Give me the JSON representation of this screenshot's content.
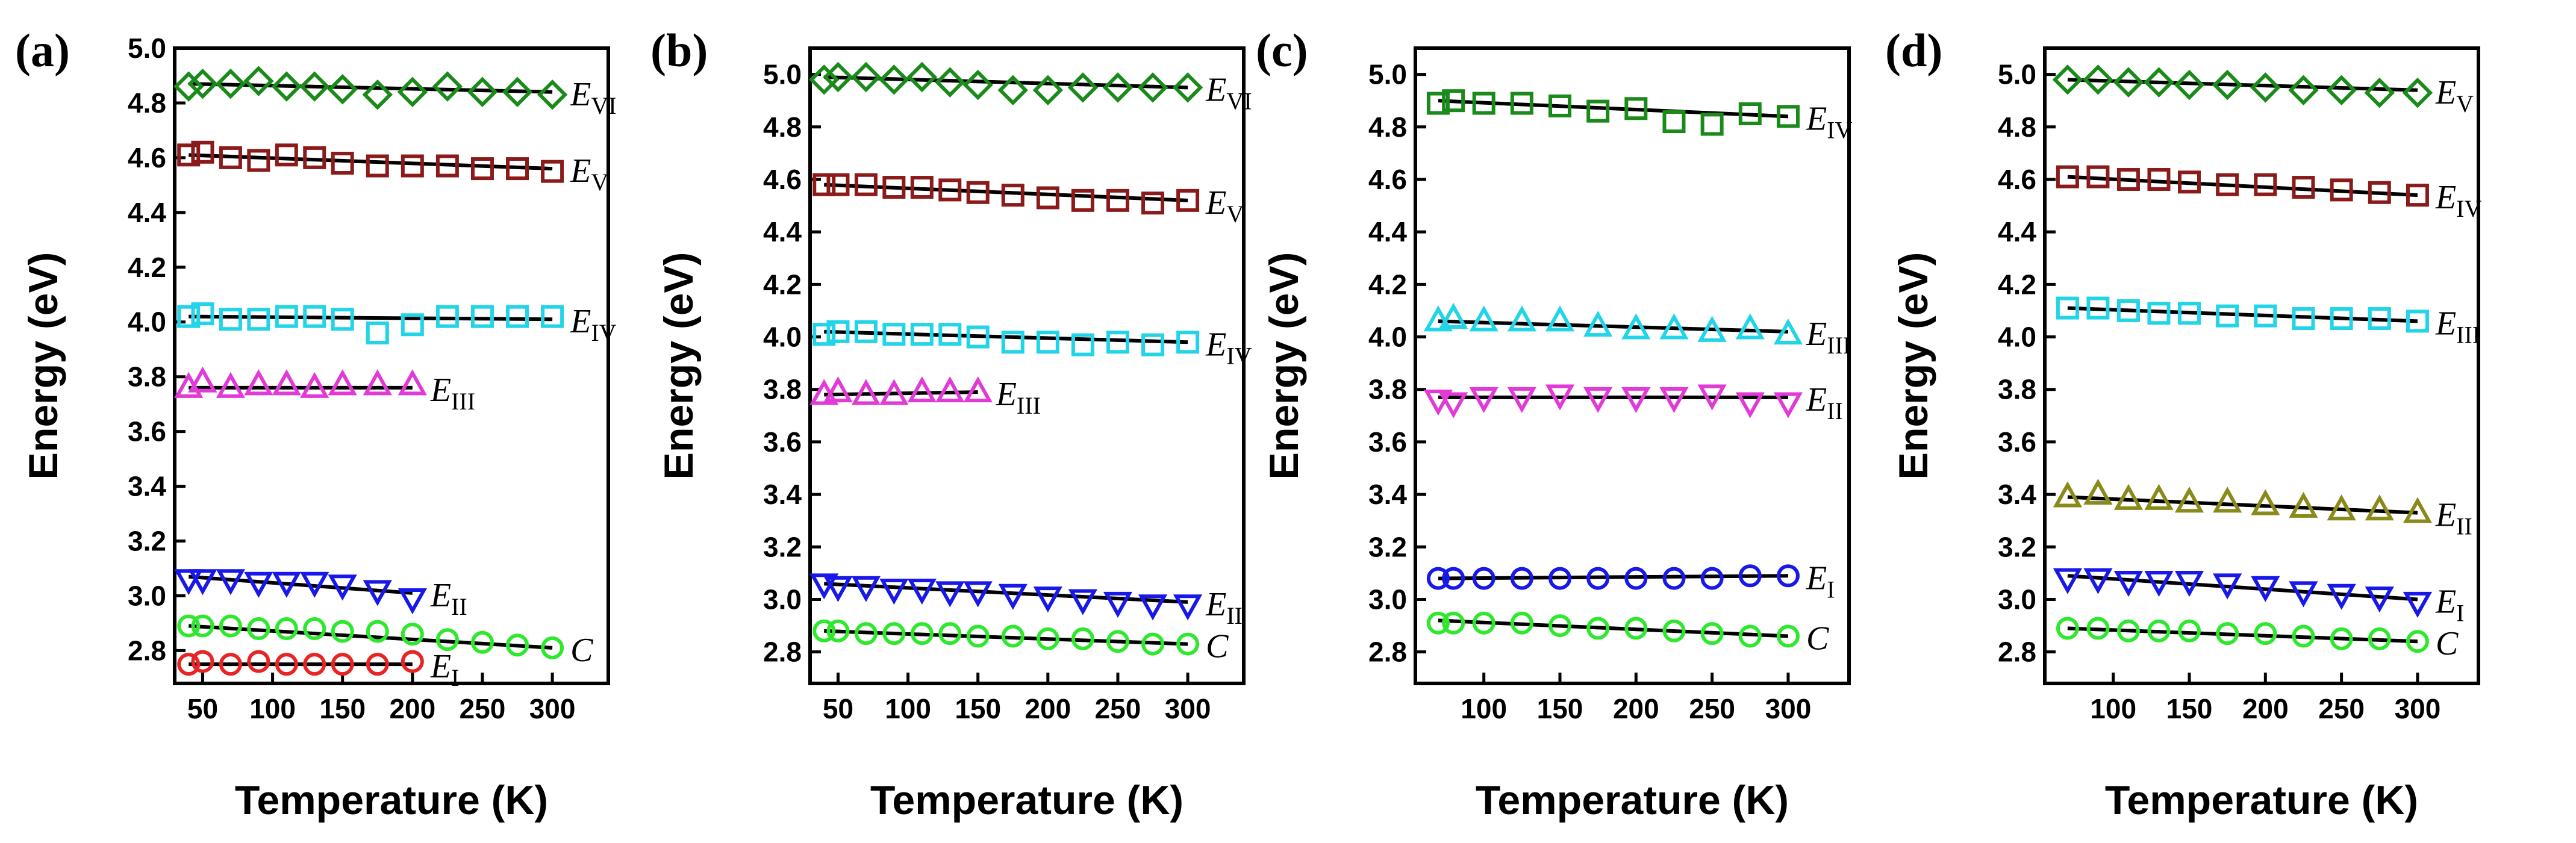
{
  "chart_data": [
    {
      "type": "scatter",
      "panel_label": "(a)",
      "xlabel": "Temperature (K)",
      "ylabel": "Energy (eV)",
      "xlim": [
        30,
        340
      ],
      "ylim": [
        2.68,
        5.0
      ],
      "xticks": [
        50,
        100,
        150,
        200,
        250,
        300
      ],
      "yticks": [
        2.8,
        3.0,
        3.2,
        3.4,
        3.6,
        3.8,
        4.0,
        4.2,
        4.4,
        4.6,
        4.8,
        5.0
      ],
      "series": [
        {
          "name": "E_VI",
          "label_main": "E",
          "label_sub": "VI",
          "marker": "diamond",
          "color": "#1a8a1a",
          "x": [
            40,
            50,
            70,
            90,
            110,
            130,
            150,
            175,
            200,
            225,
            250,
            275,
            300
          ],
          "y": [
            4.86,
            4.87,
            4.87,
            4.88,
            4.86,
            4.86,
            4.85,
            4.83,
            4.84,
            4.86,
            4.84,
            4.84,
            4.83
          ],
          "fit": [
            4.87,
            4.84
          ]
        },
        {
          "name": "E_V",
          "label_main": "E",
          "label_sub": "V",
          "marker": "square",
          "color": "#8b1a1a",
          "x": [
            40,
            50,
            70,
            90,
            110,
            130,
            150,
            175,
            200,
            225,
            250,
            275,
            300
          ],
          "y": [
            4.61,
            4.62,
            4.6,
            4.59,
            4.61,
            4.6,
            4.58,
            4.57,
            4.57,
            4.57,
            4.56,
            4.56,
            4.55
          ],
          "fit": [
            4.61,
            4.56
          ]
        },
        {
          "name": "E_IV",
          "label_main": "E",
          "label_sub": "IV",
          "marker": "square",
          "color": "#22d4e8",
          "x": [
            40,
            50,
            70,
            90,
            110,
            130,
            150,
            175,
            200,
            225,
            250,
            275,
            300
          ],
          "y": [
            4.02,
            4.03,
            4.01,
            4.01,
            4.02,
            4.02,
            4.01,
            3.96,
            3.99,
            4.02,
            4.02,
            4.02,
            4.02
          ],
          "fit": [
            4.02,
            4.01
          ]
        },
        {
          "name": "E_III",
          "label_main": "E",
          "label_sub": "III",
          "marker": "triangle-up",
          "color": "#e23ad6",
          "x": [
            40,
            50,
            70,
            90,
            110,
            130,
            150,
            175,
            200
          ],
          "y": [
            3.76,
            3.78,
            3.76,
            3.77,
            3.77,
            3.76,
            3.77,
            3.77,
            3.77
          ],
          "fit": [
            3.76,
            3.76
          ]
        },
        {
          "name": "E_II",
          "label_main": "E",
          "label_sub": "II",
          "marker": "triangle-down",
          "color": "#1818e8",
          "x": [
            40,
            50,
            70,
            90,
            110,
            130,
            150,
            175,
            200
          ],
          "y": [
            3.06,
            3.06,
            3.06,
            3.05,
            3.05,
            3.05,
            3.04,
            3.02,
            2.99
          ],
          "fit": [
            3.07,
            3.01
          ]
        },
        {
          "name": "C",
          "label_main": "C",
          "label_sub": "",
          "marker": "circle",
          "color": "#2ee82e",
          "x": [
            40,
            50,
            70,
            90,
            110,
            130,
            150,
            175,
            200,
            225,
            250,
            275,
            300
          ],
          "y": [
            2.89,
            2.89,
            2.89,
            2.88,
            2.88,
            2.88,
            2.87,
            2.87,
            2.86,
            2.84,
            2.83,
            2.82,
            2.81
          ],
          "fit": [
            2.89,
            2.81
          ]
        },
        {
          "name": "E_I",
          "label_main": "E",
          "label_sub": "I",
          "marker": "circle",
          "color": "#e82424",
          "x": [
            40,
            50,
            70,
            90,
            110,
            130,
            150,
            175,
            200
          ],
          "y": [
            2.75,
            2.76,
            2.75,
            2.76,
            2.75,
            2.75,
            2.75,
            2.75,
            2.76
          ],
          "fit": [
            2.75,
            2.75
          ]
        }
      ]
    },
    {
      "type": "scatter",
      "panel_label": "(b)",
      "xlabel": "Temperature (K)",
      "ylabel": "Energy (eV)",
      "xlim": [
        30,
        340
      ],
      "ylim": [
        2.68,
        5.1
      ],
      "xticks": [
        50,
        100,
        150,
        200,
        250,
        300
      ],
      "yticks": [
        2.8,
        3.0,
        3.2,
        3.4,
        3.6,
        3.8,
        4.0,
        4.2,
        4.4,
        4.6,
        4.8,
        5.0
      ],
      "series": [
        {
          "name": "E_VI",
          "label_main": "E",
          "label_sub": "VI",
          "marker": "diamond",
          "color": "#1a8a1a",
          "x": [
            40,
            50,
            70,
            90,
            110,
            130,
            150,
            175,
            200,
            225,
            250,
            275,
            300
          ],
          "y": [
            4.98,
            4.99,
            4.99,
            4.98,
            4.99,
            4.97,
            4.96,
            4.94,
            4.94,
            4.95,
            4.95,
            4.95,
            4.95
          ],
          "fit": [
            4.99,
            4.95
          ]
        },
        {
          "name": "E_V",
          "label_main": "E",
          "label_sub": "V",
          "marker": "square",
          "color": "#8b1a1a",
          "x": [
            40,
            50,
            70,
            90,
            110,
            130,
            150,
            175,
            200,
            225,
            250,
            275,
            300
          ],
          "y": [
            4.58,
            4.58,
            4.58,
            4.57,
            4.57,
            4.56,
            4.55,
            4.54,
            4.53,
            4.52,
            4.52,
            4.51,
            4.52
          ],
          "fit": [
            4.58,
            4.52
          ]
        },
        {
          "name": "E_IV",
          "label_main": "E",
          "label_sub": "IV",
          "marker": "square",
          "color": "#22d4e8",
          "x": [
            40,
            50,
            70,
            90,
            110,
            130,
            150,
            175,
            200,
            225,
            250,
            275,
            300
          ],
          "y": [
            4.01,
            4.02,
            4.02,
            4.01,
            4.01,
            4.01,
            4.0,
            3.98,
            3.98,
            3.97,
            3.98,
            3.97,
            3.98
          ],
          "fit": [
            4.02,
            3.98
          ]
        },
        {
          "name": "E_III",
          "label_main": "E",
          "label_sub": "III",
          "marker": "triangle-up",
          "color": "#e23ad6",
          "x": [
            40,
            50,
            70,
            90,
            110,
            130,
            150
          ],
          "y": [
            3.78,
            3.79,
            3.78,
            3.78,
            3.79,
            3.79,
            3.79
          ],
          "fit": [
            3.78,
            3.79
          ]
        },
        {
          "name": "E_II",
          "label_main": "E",
          "label_sub": "II",
          "marker": "triangle-down",
          "color": "#1818e8",
          "x": [
            40,
            50,
            70,
            90,
            110,
            130,
            150,
            175,
            200,
            225,
            250,
            275,
            300
          ],
          "y": [
            3.06,
            3.05,
            3.05,
            3.04,
            3.04,
            3.03,
            3.03,
            3.02,
            3.01,
            3.0,
            2.99,
            2.98,
            2.98
          ],
          "fit": [
            3.06,
            2.99
          ]
        },
        {
          "name": "C",
          "label_main": "C",
          "label_sub": "",
          "marker": "circle",
          "color": "#2ee82e",
          "x": [
            40,
            50,
            70,
            90,
            110,
            130,
            150,
            175,
            200,
            225,
            250,
            275,
            300
          ],
          "y": [
            2.88,
            2.88,
            2.87,
            2.87,
            2.87,
            2.87,
            2.86,
            2.86,
            2.85,
            2.85,
            2.84,
            2.83,
            2.83
          ],
          "fit": [
            2.88,
            2.83
          ]
        }
      ]
    },
    {
      "type": "scatter",
      "panel_label": "(c)",
      "xlabel": "Temperature (K)",
      "ylabel": "Energy (eV)",
      "xlim": [
        55,
        340
      ],
      "ylim": [
        2.68,
        5.1
      ],
      "xticks": [
        100,
        150,
        200,
        250,
        300
      ],
      "yticks": [
        2.8,
        3.0,
        3.2,
        3.4,
        3.6,
        3.8,
        4.0,
        4.2,
        4.4,
        4.6,
        4.8,
        5.0
      ],
      "series": [
        {
          "name": "E_IV",
          "label_main": "E",
          "label_sub": "IV",
          "marker": "square",
          "color": "#1a8a1a",
          "x": [
            70,
            80,
            100,
            125,
            150,
            175,
            200,
            225,
            250,
            275,
            300
          ],
          "y": [
            4.89,
            4.9,
            4.89,
            4.89,
            4.88,
            4.86,
            4.87,
            4.82,
            4.81,
            4.85,
            4.84
          ],
          "fit": [
            4.9,
            4.84
          ]
        },
        {
          "name": "E_III",
          "label_main": "E",
          "label_sub": "III",
          "marker": "triangle-up",
          "color": "#22d4e8",
          "x": [
            70,
            80,
            100,
            125,
            150,
            175,
            200,
            225,
            250,
            275,
            300
          ],
          "y": [
            4.06,
            4.07,
            4.06,
            4.06,
            4.06,
            4.04,
            4.03,
            4.03,
            4.02,
            4.03,
            4.01
          ],
          "fit": [
            4.06,
            4.02
          ]
        },
        {
          "name": "E_II",
          "label_main": "E",
          "label_sub": "II",
          "marker": "triangle-down",
          "color": "#e23ad6",
          "x": [
            70,
            80,
            100,
            125,
            150,
            175,
            200,
            225,
            250,
            275,
            300
          ],
          "y": [
            3.76,
            3.75,
            3.77,
            3.77,
            3.78,
            3.77,
            3.77,
            3.77,
            3.78,
            3.75,
            3.75
          ],
          "fit": [
            3.77,
            3.77
          ]
        },
        {
          "name": "E_I",
          "label_main": "E",
          "label_sub": "I",
          "marker": "circle",
          "color": "#1818e8",
          "x": [
            70,
            80,
            100,
            125,
            150,
            175,
            200,
            225,
            250,
            275,
            300
          ],
          "y": [
            3.08,
            3.08,
            3.08,
            3.08,
            3.08,
            3.08,
            3.08,
            3.08,
            3.08,
            3.09,
            3.09
          ],
          "fit": [
            3.08,
            3.09
          ]
        },
        {
          "name": "C",
          "label_main": "C",
          "label_sub": "",
          "marker": "circle",
          "color": "#2ee82e",
          "x": [
            70,
            80,
            100,
            125,
            150,
            175,
            200,
            225,
            250,
            275,
            300
          ],
          "y": [
            2.91,
            2.91,
            2.91,
            2.91,
            2.9,
            2.89,
            2.89,
            2.88,
            2.87,
            2.86,
            2.86
          ],
          "fit": [
            2.92,
            2.86
          ]
        }
      ]
    },
    {
      "type": "scatter",
      "panel_label": "(d)",
      "xlabel": "Temperature (K)",
      "ylabel": "Energy (eV)",
      "xlim": [
        55,
        340
      ],
      "ylim": [
        2.68,
        5.1
      ],
      "xticks": [
        100,
        150,
        200,
        250,
        300
      ],
      "yticks": [
        2.8,
        3.0,
        3.2,
        3.4,
        3.6,
        3.8,
        4.0,
        4.2,
        4.4,
        4.6,
        4.8,
        5.0
      ],
      "series": [
        {
          "name": "E_V",
          "label_main": "E",
          "label_sub": "V",
          "marker": "diamond",
          "color": "#1a8a1a",
          "x": [
            70,
            90,
            110,
            130,
            150,
            175,
            200,
            225,
            250,
            275,
            300
          ],
          "y": [
            4.98,
            4.98,
            4.97,
            4.97,
            4.96,
            4.96,
            4.95,
            4.94,
            4.94,
            4.93,
            4.93
          ],
          "fit": [
            4.98,
            4.94
          ]
        },
        {
          "name": "E_IV",
          "label_main": "E",
          "label_sub": "IV",
          "marker": "square",
          "color": "#8b1a1a",
          "x": [
            70,
            90,
            110,
            130,
            150,
            175,
            200,
            225,
            250,
            275,
            300
          ],
          "y": [
            4.61,
            4.61,
            4.6,
            4.6,
            4.59,
            4.58,
            4.58,
            4.57,
            4.56,
            4.55,
            4.54
          ],
          "fit": [
            4.61,
            4.54
          ]
        },
        {
          "name": "E_III",
          "label_main": "E",
          "label_sub": "III",
          "marker": "square",
          "color": "#22d4e8",
          "x": [
            70,
            90,
            110,
            130,
            150,
            175,
            200,
            225,
            250,
            275,
            300
          ],
          "y": [
            4.11,
            4.11,
            4.1,
            4.09,
            4.09,
            4.08,
            4.08,
            4.07,
            4.07,
            4.07,
            4.06
          ],
          "fit": [
            4.11,
            4.06
          ]
        },
        {
          "name": "E_II",
          "label_main": "E",
          "label_sub": "II",
          "marker": "triangle-up",
          "color": "#8a8a1a",
          "x": [
            70,
            90,
            110,
            130,
            150,
            175,
            200,
            225,
            250,
            275,
            300
          ],
          "y": [
            3.39,
            3.4,
            3.38,
            3.38,
            3.37,
            3.37,
            3.36,
            3.35,
            3.34,
            3.34,
            3.33
          ],
          "fit": [
            3.39,
            3.33
          ]
        },
        {
          "name": "E_I",
          "label_main": "E",
          "label_sub": "I",
          "marker": "triangle-down",
          "color": "#1818e8",
          "x": [
            70,
            90,
            110,
            130,
            150,
            175,
            200,
            225,
            250,
            275,
            300
          ],
          "y": [
            3.08,
            3.08,
            3.07,
            3.07,
            3.07,
            3.06,
            3.05,
            3.03,
            3.02,
            3.01,
            2.99
          ],
          "fit": [
            3.09,
            3.0
          ]
        },
        {
          "name": "C",
          "label_main": "C",
          "label_sub": "",
          "marker": "circle",
          "color": "#2ee82e",
          "x": [
            70,
            90,
            110,
            130,
            150,
            175,
            200,
            225,
            250,
            275,
            300
          ],
          "y": [
            2.89,
            2.89,
            2.88,
            2.88,
            2.88,
            2.87,
            2.87,
            2.86,
            2.85,
            2.85,
            2.84
          ],
          "fit": [
            2.89,
            2.84
          ]
        }
      ]
    }
  ]
}
